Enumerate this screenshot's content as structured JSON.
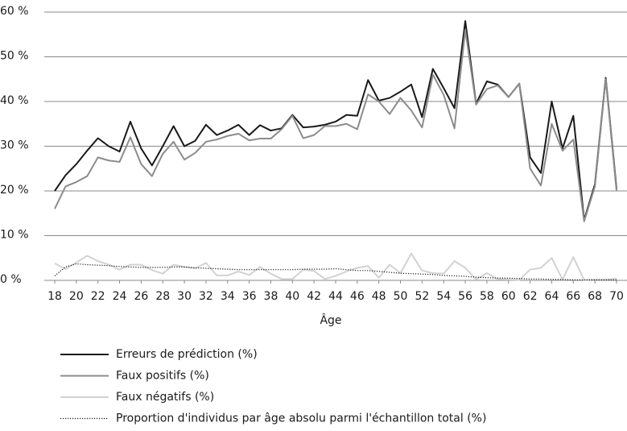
{
  "chart_data": {
    "type": "line",
    "xlabel": "Âge",
    "x": [
      18,
      19,
      20,
      21,
      22,
      23,
      24,
      25,
      26,
      27,
      28,
      29,
      30,
      31,
      32,
      33,
      34,
      35,
      36,
      37,
      38,
      39,
      40,
      41,
      42,
      43,
      44,
      45,
      46,
      47,
      48,
      49,
      50,
      51,
      52,
      53,
      54,
      55,
      56,
      57,
      58,
      59,
      60,
      61,
      62,
      63,
      64,
      65,
      66,
      67,
      68,
      69,
      70
    ],
    "xlim": [
      18,
      70
    ],
    "xticks": [
      18,
      20,
      22,
      24,
      26,
      28,
      30,
      32,
      34,
      36,
      38,
      40,
      42,
      44,
      46,
      48,
      50,
      52,
      54,
      56,
      58,
      60,
      62,
      64,
      66,
      68,
      70
    ],
    "ylim": [
      0,
      60
    ],
    "yticks": [
      {
        "value": 0,
        "label": "0 %"
      },
      {
        "value": 10,
        "label": "10 %"
      },
      {
        "value": 20,
        "label": "20 %"
      },
      {
        "value": 30,
        "label": "30 %"
      },
      {
        "value": 40,
        "label": "40 %"
      },
      {
        "value": 50,
        "label": "50 %"
      },
      {
        "value": 60,
        "label": "60 %"
      }
    ],
    "grid": true,
    "legend": "bottom",
    "series": [
      {
        "name": "Erreurs de prédiction (%)",
        "color": "#1a1a1a",
        "dash": "solid",
        "values": [
          20,
          23.5,
          26,
          29,
          31.8,
          30,
          28.8,
          35.5,
          29.5,
          25.7,
          30,
          34.5,
          30,
          31.2,
          34.8,
          32.5,
          33.5,
          34.8,
          32.5,
          34.7,
          33.5,
          34,
          37,
          34.2,
          34.4,
          34.8,
          35.5,
          37,
          36.8,
          44.8,
          40.2,
          40.8,
          42.2,
          43.8,
          36.5,
          47.3,
          43,
          38.5,
          58,
          39.5,
          44.5,
          43.8,
          41,
          44,
          27.5,
          24,
          40,
          29.5,
          36.8,
          13.5,
          21.5,
          45.3,
          20.5
        ]
      },
      {
        "name": "Faux positifs (%)",
        "color": "#8c8c8c",
        "dash": "solid",
        "values": [
          16,
          21,
          22,
          23.3,
          27.5,
          26.8,
          26.5,
          32,
          26,
          23.3,
          28.3,
          31,
          27,
          28.5,
          31,
          31.5,
          32.3,
          32.8,
          31.3,
          31.7,
          31.7,
          33.8,
          36.8,
          31.8,
          32.5,
          34.5,
          34.5,
          35,
          33.8,
          41.6,
          40,
          37.2,
          40.8,
          38,
          34.2,
          46,
          41.5,
          34,
          56,
          39.3,
          42.8,
          43.6,
          41,
          44,
          25,
          21.2,
          35,
          29,
          31.5,
          13.2,
          21,
          45,
          20
        ]
      },
      {
        "name": "Faux négatifs (%)",
        "color": "#d2d2d2",
        "dash": "solid",
        "values": [
          3.8,
          2.5,
          4,
          5.5,
          4.3,
          3.5,
          2.4,
          3.5,
          3.5,
          2.3,
          1.5,
          3.5,
          3,
          2.7,
          3.9,
          1.1,
          1.1,
          2,
          1.2,
          3,
          1.5,
          0.3,
          0.3,
          2.4,
          2.1,
          0.3,
          1,
          2,
          2.8,
          3.2,
          0.6,
          3.5,
          1.6,
          6,
          2.2,
          1.6,
          1.5,
          4.3,
          2.8,
          0.2,
          1.6,
          0.3,
          0.2,
          0.1,
          2.4,
          2.8,
          5,
          0.2,
          5.2,
          0.1,
          0.2,
          0.2,
          0.4
        ]
      },
      {
        "name": "Proportion d'individus par âge absolu parmi l'échantillon total (%)",
        "color": "#1a1a1a",
        "dash": "dotted",
        "values": [
          1,
          3,
          3.7,
          3.5,
          3.4,
          3.3,
          3.1,
          3,
          2.9,
          2.9,
          2.9,
          3,
          3,
          2.8,
          2.7,
          2.6,
          2.5,
          2.4,
          2.4,
          2.4,
          2.4,
          2.4,
          2.4,
          2.5,
          2.5,
          2.5,
          2.6,
          2.4,
          2.2,
          2.2,
          2,
          1.8,
          1.6,
          1.5,
          1.4,
          1.3,
          1.1,
          1,
          0.9,
          0.7,
          0.6,
          0.5,
          0.5,
          0.4,
          0.3,
          0.3,
          0.2,
          0.2,
          0.1,
          0.1,
          0.1,
          0.1,
          0.1
        ]
      }
    ]
  }
}
